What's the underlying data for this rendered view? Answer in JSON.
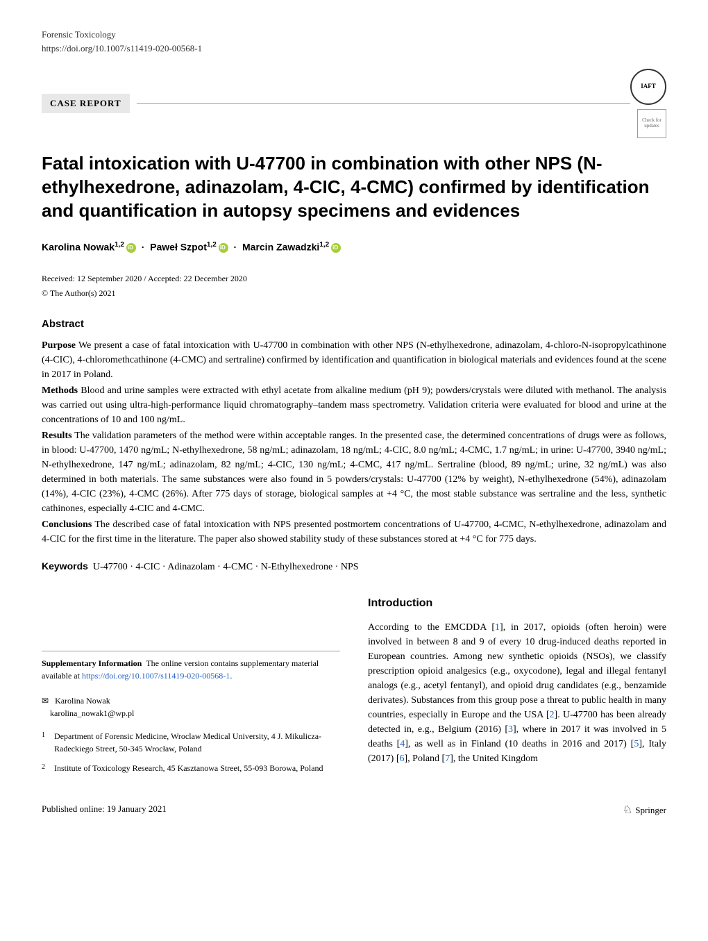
{
  "header": {
    "journal": "Forensic Toxicology",
    "doi": "https://doi.org/10.1007/s11419-020-00568-1",
    "badge": "CASE REPORT",
    "logo_iaft": "IAFT",
    "logo_check_line1": "Check for",
    "logo_check_line2": "updates"
  },
  "title": "Fatal intoxication with U-47700 in combination with other NPS (N-ethylhexedrone, adinazolam, 4-CIC, 4-CMC) confirmed by identification and quantification in autopsy specimens and evidences",
  "authors": {
    "a1_name": "Karolina Nowak",
    "a1_aff": "1,2",
    "a2_name": "Paweł Szpot",
    "a2_aff": "1,2",
    "a3_name": "Marcin Zawadzki",
    "a3_aff": "1,2"
  },
  "dates": "Received: 12 September 2020 / Accepted: 22 December 2020",
  "copyright": "© The Author(s) 2021",
  "abstract": {
    "heading": "Abstract",
    "purpose_label": "Purpose",
    "purpose": "We present a case of fatal intoxication with U-47700 in combination with other NPS (N-ethylhexedrone, adinazolam, 4-chloro-N-isopropylcathinone (4-CIC), 4-chloromethcathinone (4-CMC) and sertraline) confirmed by identification and quantification in biological materials and evidences found at the scene in 2017 in Poland.",
    "methods_label": "Methods",
    "methods": "Blood and urine samples were extracted with ethyl acetate from alkaline medium (pH 9); powders/crystals were diluted with methanol. The analysis was carried out using ultra-high-performance liquid chromatography–tandem mass spectrometry. Validation criteria were evaluated for blood and urine at the concentrations of 10 and 100 ng/mL.",
    "results_label": "Results",
    "results": "The validation parameters of the method were within acceptable ranges. In the presented case, the determined concentrations of drugs were as follows, in blood: U-47700, 1470 ng/mL; N-ethylhexedrone, 58 ng/mL; adinazolam, 18 ng/mL; 4-CIC, 8.0 ng/mL; 4-CMC, 1.7 ng/mL; in urine: U-47700, 3940 ng/mL; N-ethylhexedrone, 147 ng/mL; adinazolam, 82 ng/mL; 4-CIC, 130 ng/mL; 4-CMC, 417 ng/mL. Sertraline (blood, 89 ng/mL; urine, 32 ng/mL) was also determined in both materials. The same substances were also found in 5 powders/crystals: U-47700 (12% by weight), N-ethylhexedrone (54%), adinazolam (14%), 4-CIC (23%), 4-CMC (26%). After 775 days of storage, biological samples at +4 °C, the most stable substance was sertraline and the less, synthetic cathinones, especially 4-CIC and 4-CMC.",
    "conclusions_label": "Conclusions",
    "conclusions": "The described case of fatal intoxication with NPS presented postmortem concentrations of U-47700, 4-CMC, N-ethylhexedrone, adinazolam and 4-CIC for the first time in the literature. The paper also showed stability study of these substances stored at +4 °C for 775 days."
  },
  "keywords": {
    "label": "Keywords",
    "text": "U-47700 · 4-CIC · Adinazolam · 4-CMC · N-Ethylhexedrone · NPS"
  },
  "introduction": {
    "heading": "Introduction",
    "text_part1": "According to the EMCDDA [",
    "ref1": "1",
    "text_part2": "], in 2017, opioids (often heroin) were involved in between 8 and 9 of every 10 drug-induced deaths reported in European countries. Among new synthetic opioids (NSOs), we classify prescription opioid analgesics (e.g., oxycodone), legal and illegal fentanyl analogs (e.g., acetyl fentanyl), and opioid drug candidates (e.g., benzamide derivates). Substances from this group pose a threat to public health in many countries, especially in Europe and the USA [",
    "ref2": "2",
    "text_part3": "]. U-47700 has been already detected in, e.g., Belgium (2016) [",
    "ref3": "3",
    "text_part4": "], where in 2017 it was involved in 5 deaths [",
    "ref4": "4",
    "text_part5": "], as well as in Finland (10 deaths in 2016 and 2017) [",
    "ref5": "5",
    "text_part6": "], Italy (2017) [",
    "ref6": "6",
    "text_part7": "], Poland [",
    "ref7": "7",
    "text_part8": "], the United Kingdom"
  },
  "supplementary": {
    "label": "Supplementary Information",
    "text": "The online version contains supplementary material available at ",
    "link": "https://doi.org/10.1007/s11419-020-00568-1",
    "link_display": "https://doi.org/10.1007/s11419-020-00568-1"
  },
  "correspondence": {
    "name": "Karolina Nowak",
    "email": "karolina_nowak1@wp.pl"
  },
  "affiliations": {
    "a1_num": "1",
    "a1_text": "Department of Forensic Medicine, Wroclaw Medical University, 4 J. Mikulicza-Radeckiego Street, 50-345 Wrocław, Poland",
    "a2_num": "2",
    "a2_text": "Institute of Toxicology Research, 45 Kasztanowa Street, 55-093 Borowa, Poland"
  },
  "footer": {
    "published": "Published online: 19 January 2021",
    "publisher": "Springer"
  },
  "colors": {
    "link": "#2060c0",
    "orcid": "#A6CE39",
    "badge_bg": "#e8e8e8"
  }
}
